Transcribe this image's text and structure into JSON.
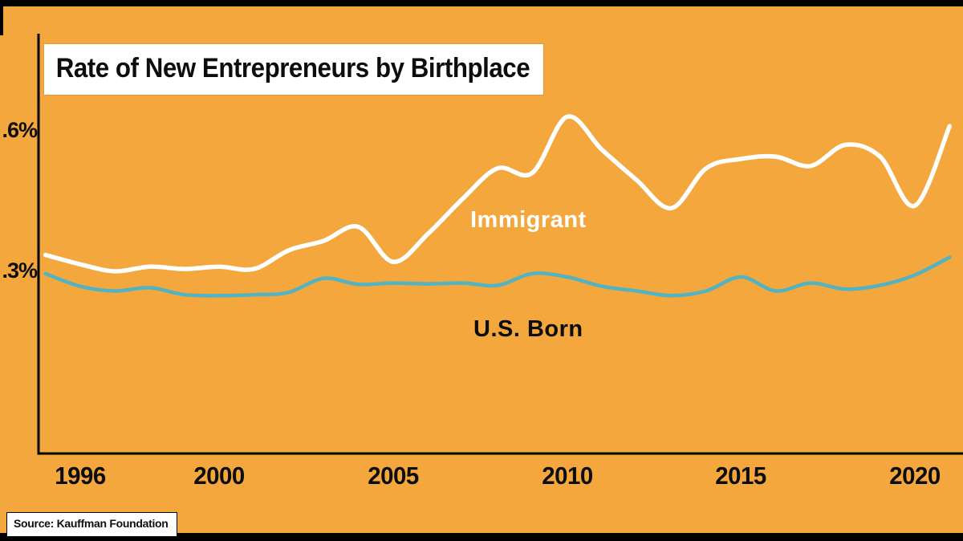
{
  "title": {
    "text": "Rate of New Entrepreneurs by Birthplace"
  },
  "source": {
    "text": "Source: Kauffman Foundation"
  },
  "colors": {
    "background": "#F3A73C",
    "frame_bars": "#000000",
    "axis": "#000000",
    "immigrant_line": "#FFFFFF",
    "us_born_line": "#52B3C2",
    "title_box_bg": "#FFFFFF",
    "text": "#0D0D0D"
  },
  "chart_data": {
    "type": "line",
    "title": "Rate of New Entrepreneurs by Birthplace",
    "unit": "%",
    "grid": false,
    "legend": "inline labels on chart",
    "xlim": [
      1995,
      2021
    ],
    "ylim": [
      0,
      0.7
    ],
    "x": [
      1995,
      1996,
      1997,
      1998,
      1999,
      2000,
      2001,
      2002,
      2003,
      2004,
      2005,
      2006,
      2007,
      2008,
      2009,
      2010,
      2011,
      2012,
      2013,
      2014,
      2015,
      2016,
      2017,
      2018,
      2019,
      2020,
      2021
    ],
    "series": [
      {
        "name": "Immigrant",
        "color": "#FFFFFF",
        "values": [
          0.335,
          0.315,
          0.3,
          0.31,
          0.305,
          0.31,
          0.305,
          0.345,
          0.365,
          0.395,
          0.32,
          0.38,
          0.455,
          0.52,
          0.51,
          0.63,
          0.56,
          0.495,
          0.435,
          0.52,
          0.54,
          0.545,
          0.525,
          0.57,
          0.545,
          0.44,
          0.61
        ]
      },
      {
        "name": "U.S. Born",
        "color": "#52B3C2",
        "values": [
          0.295,
          0.268,
          0.258,
          0.265,
          0.25,
          0.248,
          0.25,
          0.255,
          0.285,
          0.272,
          0.275,
          0.273,
          0.275,
          0.27,
          0.295,
          0.288,
          0.268,
          0.258,
          0.248,
          0.258,
          0.288,
          0.258,
          0.275,
          0.262,
          0.27,
          0.292,
          0.33
        ]
      }
    ],
    "xticks": [
      {
        "value": 1996,
        "label": "1996"
      },
      {
        "value": 2000,
        "label": "2000"
      },
      {
        "value": 2005,
        "label": "2005"
      },
      {
        "value": 2010,
        "label": "2010"
      },
      {
        "value": 2015,
        "label": "2015"
      },
      {
        "value": 2020,
        "label": "2020"
      }
    ],
    "yticks": [
      {
        "value": 0.3,
        "label": ".3%"
      },
      {
        "value": 0.6,
        "label": ".6%"
      }
    ]
  }
}
